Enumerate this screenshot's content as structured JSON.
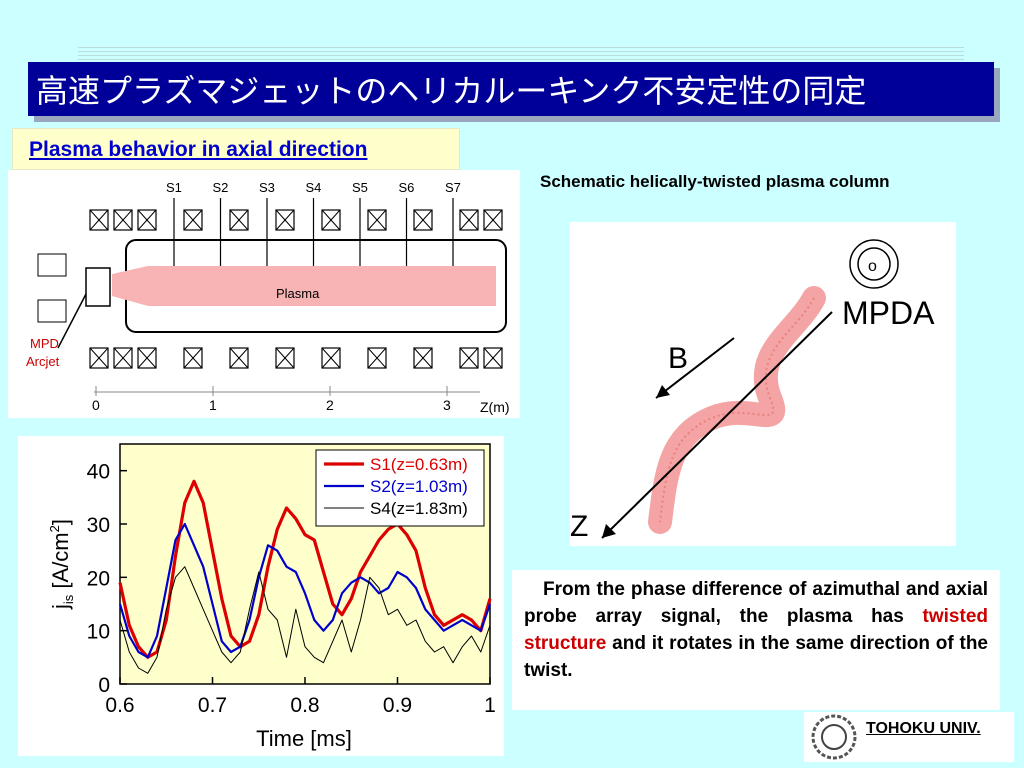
{
  "slide": {
    "title": "高速プラズマジェットのヘリカルーキンク不安定性の同定",
    "section_label": "Plasma behavior in axial direction",
    "right_title": "Schematic helically-twisted plasma column",
    "university": "TOHOKU UNIV.",
    "colors": {
      "background": "#ccffff",
      "title_bar": "#000099",
      "section_text": "#0000cc",
      "highlight": "#cc0000"
    }
  },
  "schematic": {
    "probes": [
      "S1",
      "S2",
      "S3",
      "S4",
      "S5",
      "S6",
      "S7"
    ],
    "plasma_label": "Plasma",
    "source_label_1": "MPD",
    "source_label_2": "Arcjet",
    "z_ticks": [
      "0",
      "1",
      "2",
      "3"
    ],
    "z_axis_label": "Z(m)"
  },
  "helix": {
    "mpda_label": "MPDA",
    "b_label": "B",
    "z_label": "Z"
  },
  "description": {
    "part1": "From the phase difference of azimuthal and axial probe array signal, the plasma has ",
    "highlight": "twisted structure",
    "part2": " and it rotates in the same direction of the twist."
  },
  "chart_data": {
    "type": "line",
    "xlabel": "Time [ms]",
    "ylabel": "j",
    "ylabel_sub": "is",
    "ylabel_unit": " [A/cm",
    "ylabel_sup": "2",
    "ylabel_close": "]",
    "xlim": [
      0.6,
      1.0
    ],
    "ylim": [
      0,
      45
    ],
    "xticks": [
      0.6,
      0.7,
      0.8,
      0.9,
      1.0
    ],
    "xtick_labels": [
      "0.6",
      "0.7",
      "0.8",
      "0.9",
      "1"
    ],
    "yticks": [
      0,
      10,
      20,
      30,
      40
    ],
    "background": "#ffffcc",
    "legend_position": "top-right",
    "series": [
      {
        "name": "S1(z=0.63m)",
        "color": "#dd0000",
        "x": [
          0.6,
          0.61,
          0.62,
          0.63,
          0.64,
          0.65,
          0.66,
          0.67,
          0.68,
          0.69,
          0.7,
          0.71,
          0.72,
          0.73,
          0.74,
          0.75,
          0.76,
          0.77,
          0.78,
          0.79,
          0.8,
          0.81,
          0.82,
          0.83,
          0.84,
          0.85,
          0.86,
          0.87,
          0.88,
          0.89,
          0.9,
          0.91,
          0.92,
          0.93,
          0.94,
          0.95,
          0.96,
          0.97,
          0.98,
          0.99,
          1.0
        ],
        "y": [
          19,
          11,
          7,
          5,
          6,
          12,
          24,
          34,
          38,
          34,
          25,
          16,
          9,
          7,
          8,
          13,
          22,
          29,
          33,
          31,
          28,
          27,
          21,
          15,
          13,
          16,
          21,
          24,
          27,
          29,
          30,
          28,
          25,
          18,
          13,
          11,
          12,
          13,
          12,
          10,
          16
        ]
      },
      {
        "name": "S2(z=1.03m)",
        "color": "#0000cc",
        "x": [
          0.6,
          0.61,
          0.62,
          0.63,
          0.64,
          0.65,
          0.66,
          0.67,
          0.68,
          0.69,
          0.7,
          0.71,
          0.72,
          0.73,
          0.74,
          0.75,
          0.76,
          0.77,
          0.78,
          0.79,
          0.8,
          0.81,
          0.82,
          0.83,
          0.84,
          0.85,
          0.86,
          0.87,
          0.88,
          0.89,
          0.9,
          0.91,
          0.92,
          0.93,
          0.94,
          0.95,
          0.96,
          0.97,
          0.98,
          0.99,
          1.0
        ],
        "y": [
          15,
          9,
          6,
          5,
          9,
          18,
          27,
          30,
          26,
          22,
          15,
          8,
          6,
          7,
          12,
          20,
          26,
          25,
          22,
          21,
          17,
          12,
          10,
          12,
          17,
          19,
          20,
          19,
          17,
          18,
          21,
          20,
          18,
          14,
          12,
          10,
          11,
          12,
          11,
          10,
          15
        ]
      },
      {
        "name": "S4(z=1.83m)",
        "color": "#000000",
        "x": [
          0.6,
          0.61,
          0.62,
          0.63,
          0.64,
          0.65,
          0.66,
          0.67,
          0.68,
          0.69,
          0.7,
          0.71,
          0.72,
          0.73,
          0.74,
          0.75,
          0.76,
          0.77,
          0.78,
          0.79,
          0.8,
          0.81,
          0.82,
          0.83,
          0.84,
          0.85,
          0.86,
          0.87,
          0.88,
          0.89,
          0.9,
          0.91,
          0.92,
          0.93,
          0.94,
          0.95,
          0.96,
          0.97,
          0.98,
          0.99,
          1.0
        ],
        "y": [
          12,
          6,
          3,
          2,
          5,
          14,
          20,
          22,
          18,
          14,
          10,
          6,
          4,
          6,
          14,
          21,
          14,
          12,
          5,
          14,
          7,
          5,
          4,
          8,
          12,
          6,
          12,
          20,
          18,
          13,
          14,
          11,
          12,
          8,
          6,
          7,
          4,
          7,
          9,
          6,
          11
        ]
      }
    ]
  }
}
